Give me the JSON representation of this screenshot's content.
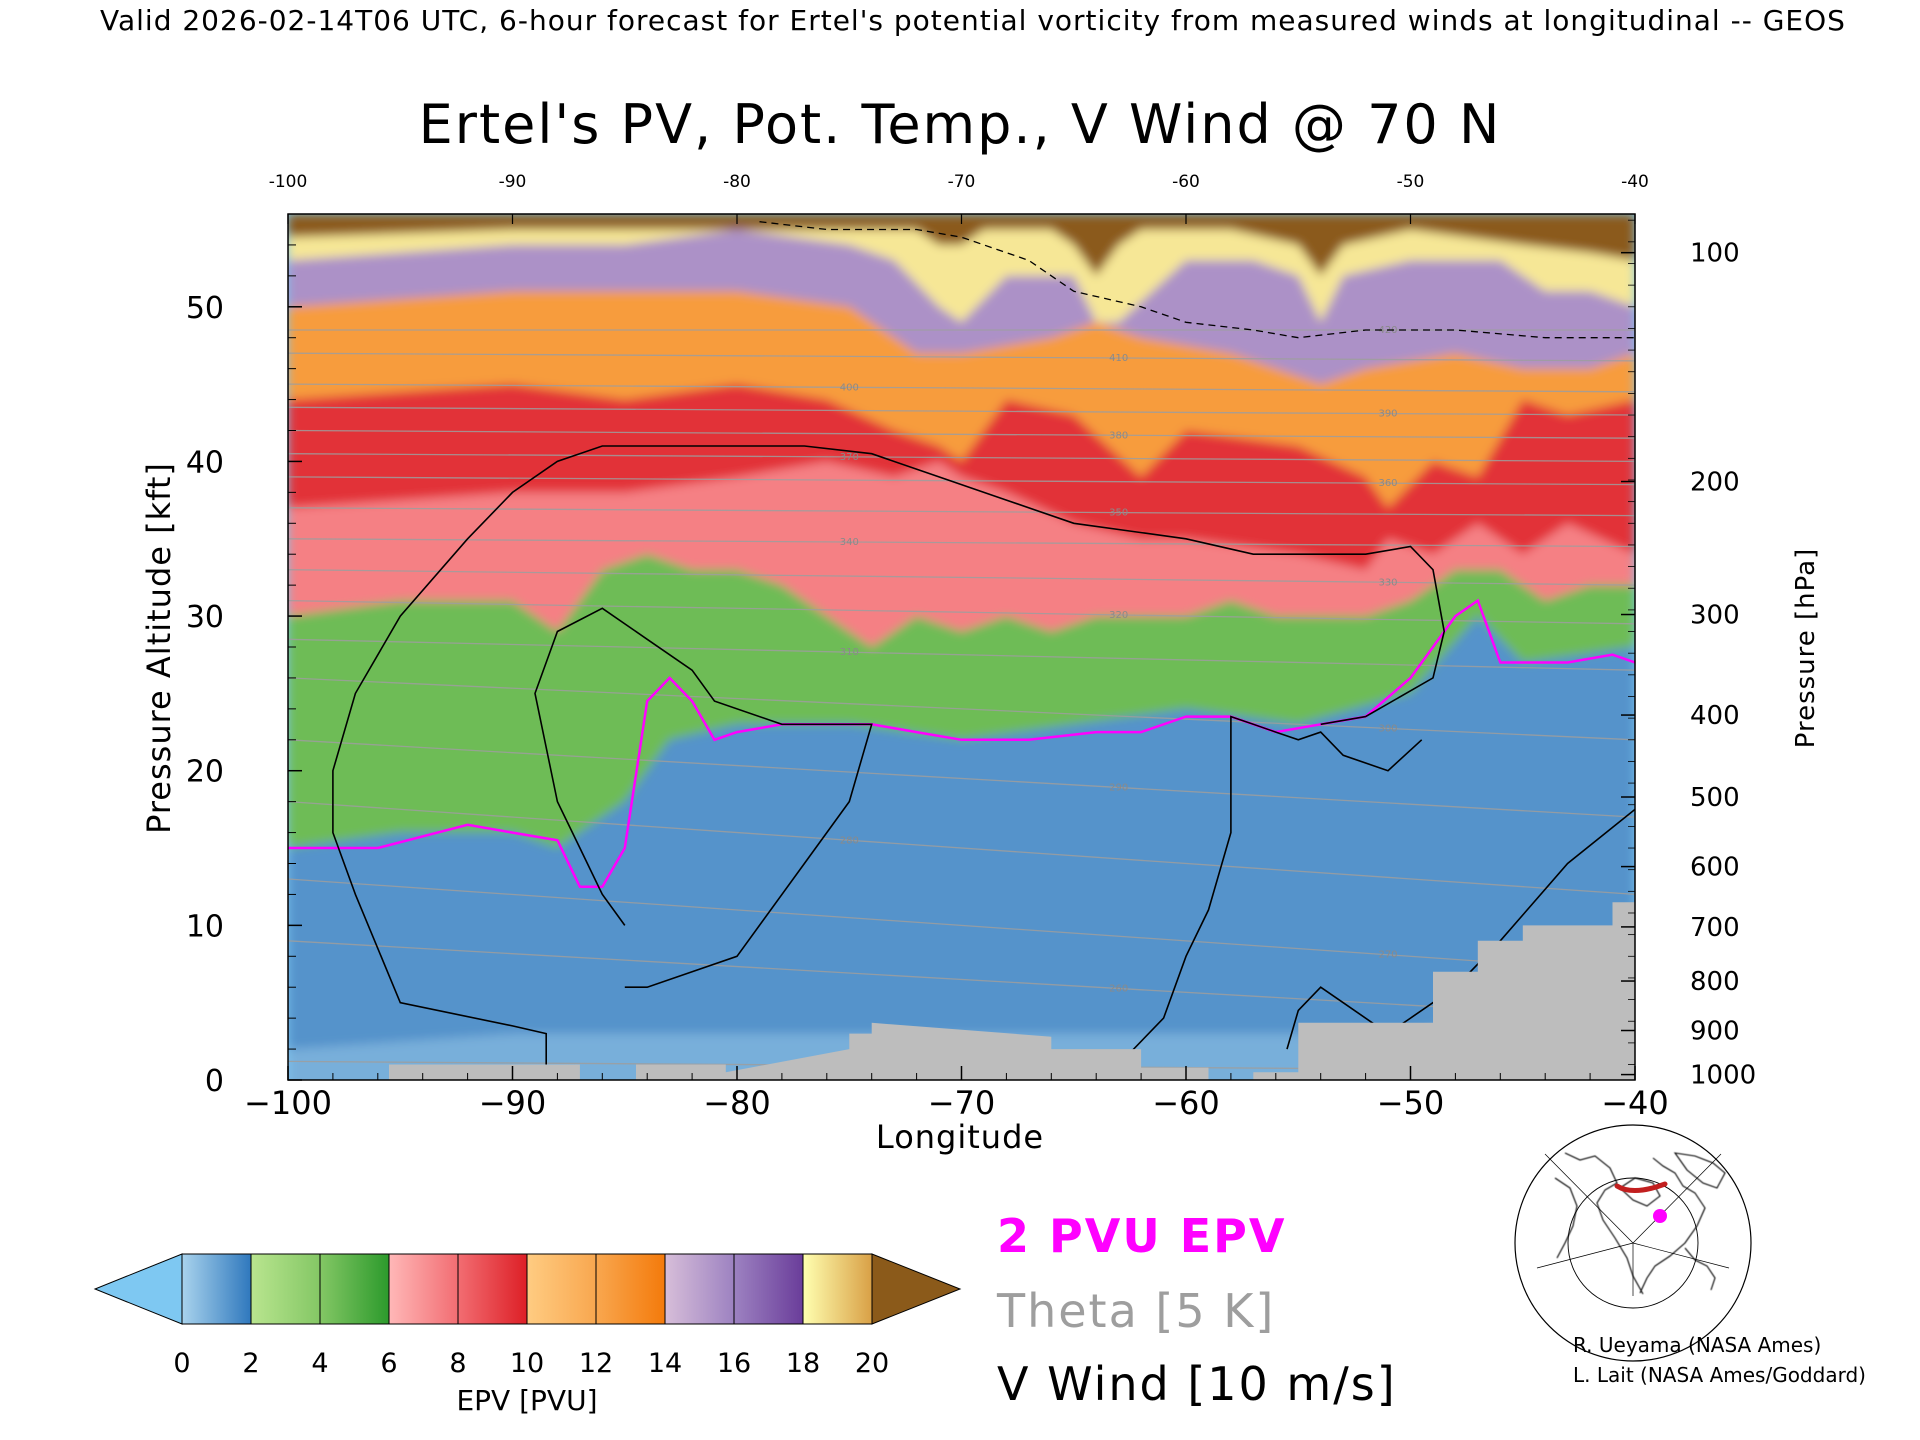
{
  "header_line": "Valid 2026-02-14T06 UTC, 6-hour forecast for Ertel's potential vorticity from measured winds at longitudinal -- GEOS",
  "chart_data": {
    "type": "heatmap",
    "title": "Ertel's PV, Pot. Temp., V Wind @ 70 N",
    "xlabel": "Longitude",
    "ylabel_left": "Pressure Altitude [kft]",
    "ylabel_right": "Pressure [hPa]",
    "xlim": [
      -100,
      -40
    ],
    "ylim_kft": [
      0,
      56
    ],
    "x_ticks": [
      "-100",
      "-90",
      "-80",
      "-70",
      "-60",
      "-50",
      "-40"
    ],
    "top_ticks": [
      "-100",
      "-90",
      "-80",
      "-70",
      "-60",
      "-50",
      "-40"
    ],
    "left_ticks": [
      {
        "label": "0",
        "kft": 0
      },
      {
        "label": "10",
        "kft": 10
      },
      {
        "label": "20",
        "kft": 20
      },
      {
        "label": "30",
        "kft": 30
      },
      {
        "label": "40",
        "kft": 40
      },
      {
        "label": "50",
        "kft": 50
      }
    ],
    "right_ticks": [
      {
        "label": "1000",
        "kft": 0.35
      },
      {
        "label": "900",
        "kft": 3.2
      },
      {
        "label": "800",
        "kft": 6.4
      },
      {
        "label": "700",
        "kft": 9.9
      },
      {
        "label": "600",
        "kft": 13.8
      },
      {
        "label": "500",
        "kft": 18.3
      },
      {
        "label": "400",
        "kft": 23.6
      },
      {
        "label": "300",
        "kft": 30.1
      },
      {
        "label": "200",
        "kft": 38.7
      },
      {
        "label": "100",
        "kft": 53.5
      }
    ],
    "pv_layers": [
      {
        "pv": 0.8,
        "longitude": [
          -100,
          -90,
          -80,
          -70,
          -60,
          -50,
          -45,
          -40
        ],
        "top_kft": [
          2,
          3,
          3,
          3,
          3,
          3,
          5,
          8
        ]
      },
      {
        "pv": 1.4,
        "longitude": [
          -100,
          -95,
          -90,
          -88,
          -85,
          -83,
          -80,
          -75,
          -70,
          -65,
          -60,
          -55,
          -50,
          -47,
          -45,
          -40
        ],
        "top_kft": [
          15,
          16,
          16,
          15,
          18,
          22,
          23,
          23,
          22,
          23,
          24,
          23,
          25,
          30,
          27,
          28
        ]
      },
      {
        "pv": 4.5,
        "longitude": [
          -100,
          -95,
          -90,
          -88,
          -86,
          -84,
          -82,
          -80,
          -78,
          -76,
          -74,
          -72,
          -70,
          -68,
          -66,
          -64,
          -62,
          -60,
          -58,
          -56,
          -54,
          -52,
          -50,
          -48,
          -46,
          -44,
          -42,
          -40
        ],
        "top_kft": [
          30,
          31,
          31,
          29,
          33,
          34,
          33,
          33,
          32,
          30,
          28,
          30,
          29,
          30,
          29,
          30,
          30,
          30,
          31,
          30,
          30,
          30,
          31,
          33,
          33,
          31,
          32,
          32
        ]
      },
      {
        "pv": 7.5,
        "longitude": [
          -100,
          -90,
          -85,
          -80,
          -76,
          -73,
          -71,
          -70,
          -68,
          -65,
          -62,
          -60,
          -55,
          -52,
          -51,
          -49,
          -47,
          -45,
          -43,
          -40
        ],
        "top_kft": [
          37,
          38,
          38,
          39,
          40,
          39,
          40,
          39,
          38,
          36,
          35,
          35,
          34,
          33,
          35,
          34,
          36,
          34,
          36,
          34
        ]
      },
      {
        "pv": 9.5,
        "longitude": [
          -100,
          -90,
          -85,
          -80,
          -76,
          -73,
          -71,
          -70,
          -68,
          -65,
          -62,
          -60,
          -55,
          -52,
          -51,
          -49,
          -47,
          -45,
          -43,
          -40
        ],
        "top_kft": [
          44,
          45,
          44,
          45,
          44,
          42,
          41,
          40,
          44,
          43,
          39,
          42,
          41,
          39,
          37,
          40,
          39,
          44,
          43,
          44
        ]
      },
      {
        "pv": 12.5,
        "longitude": [
          -100,
          -90,
          -80,
          -75,
          -72,
          -70,
          -66,
          -64,
          -62,
          -58,
          -54,
          -52,
          -48,
          -45,
          -42,
          -40
        ],
        "top_kft": [
          50,
          51,
          51,
          50,
          47,
          47,
          48,
          49,
          48,
          47,
          45,
          46,
          47,
          46,
          46,
          47
        ]
      },
      {
        "pv": 15.5,
        "longitude": [
          -100,
          -90,
          -85,
          -80,
          -75,
          -73,
          -71,
          -70,
          -68,
          -65,
          -64,
          -63,
          -60,
          -57,
          -55,
          -54,
          -53,
          -50,
          -46,
          -44,
          -42,
          -40
        ],
        "top_kft": [
          53,
          54,
          54,
          55,
          54,
          53,
          50,
          49,
          52,
          52,
          49,
          49,
          53,
          53,
          52,
          49,
          52,
          53,
          53,
          51,
          51,
          50
        ]
      },
      {
        "pv": 18.5,
        "longitude": [
          -100,
          -90,
          -80,
          -72,
          -71,
          -70,
          -69,
          -66,
          -65,
          -64,
          -63,
          -62,
          -58,
          -55,
          -54,
          -53,
          -50,
          -45,
          -42,
          -40
        ],
        "top_kft": [
          54.5,
          55,
          55,
          55,
          54,
          54,
          55,
          55,
          54,
          52,
          54,
          55,
          55,
          54,
          52,
          54,
          55,
          54,
          53.5,
          53
        ]
      },
      {
        "pv": 21,
        "longitude": [
          -100,
          -40
        ],
        "top_kft": [
          56,
          56
        ]
      }
    ],
    "epv_2pvu_contour": {
      "longitude": [
        -100,
        -96,
        -92,
        -90,
        -88,
        -87,
        -86,
        -85,
        -84,
        -83,
        -82,
        -81,
        -80,
        -78,
        -76,
        -74,
        -72,
        -70,
        -67,
        -64,
        -62,
        -60,
        -58,
        -56,
        -54,
        -52,
        -50,
        -49,
        -48,
        -47,
        -46,
        -45,
        -43,
        -41,
        -40
      ],
      "kft": [
        15,
        15,
        16.5,
        16,
        15.5,
        12.5,
        12.5,
        15,
        24.5,
        26,
        24.5,
        22,
        22.5,
        23,
        23,
        23,
        22.5,
        22,
        22,
        22.5,
        22.5,
        23.5,
        23.5,
        22.5,
        23,
        23.5,
        26,
        28,
        30,
        31,
        27,
        27,
        27,
        27.5,
        27
      ]
    },
    "theta_isentropes": [
      {
        "label": "250",
        "kft": [
          1.2,
          0.6
        ]
      },
      {
        "label": "260",
        "kft": [
          9,
          4
        ]
      },
      {
        "label": "270",
        "kft": [
          13,
          7
        ]
      },
      {
        "label": "280",
        "kft": [
          18,
          12
        ]
      },
      {
        "label": "290",
        "kft": [
          22,
          17
        ]
      },
      {
        "label": "300",
        "kft": [
          26,
          22
        ]
      },
      {
        "label": "310",
        "kft": [
          28.5,
          26.5
        ]
      },
      {
        "label": "320",
        "kft": [
          31,
          29.5
        ]
      },
      {
        "label": "330",
        "kft": [
          33,
          32
        ]
      },
      {
        "label": "340",
        "kft": [
          35,
          34.5
        ]
      },
      {
        "label": "350",
        "kft": [
          37,
          36.5
        ]
      },
      {
        "label": "360",
        "kft": [
          39,
          38.5
        ]
      },
      {
        "label": "370",
        "kft": [
          40.5,
          40
        ]
      },
      {
        "label": "380",
        "kft": [
          42,
          41.5
        ]
      },
      {
        "label": "390",
        "kft": [
          43.5,
          43
        ]
      },
      {
        "label": "400",
        "kft": [
          45,
          44.5
        ]
      },
      {
        "label": "410",
        "kft": [
          47,
          46.5
        ]
      },
      {
        "label": "420",
        "kft": [
          48.5,
          48.5
        ]
      }
    ],
    "vwind_zero_contours": [
      {
        "longitude": [
          -88.5,
          -88.5,
          -90,
          -95,
          -97,
          -98,
          -98,
          -97,
          -95,
          -92,
          -90,
          -88,
          -86,
          -84,
          -82,
          -80,
          -77,
          -74,
          -71,
          -68,
          -65,
          -60,
          -57,
          -55,
          -52,
          -50,
          -49,
          -48.5,
          -49,
          -52,
          -54
        ],
        "kft": [
          0,
          3,
          3.5,
          5,
          12,
          16,
          20,
          25,
          30,
          35,
          38,
          40,
          41,
          41,
          41,
          41,
          41,
          40.5,
          39,
          37.5,
          36,
          35,
          34,
          34,
          34,
          34.5,
          33,
          29,
          26,
          23.5,
          23
        ]
      },
      {
        "longitude": [
          -85,
          -84,
          -82,
          -80,
          -77,
          -75,
          -74,
          -75,
          -78,
          -81,
          -82,
          -84,
          -86,
          -88,
          -89,
          -88,
          -87,
          -86,
          -85
        ],
        "kft": [
          6,
          6,
          7,
          8,
          14,
          18,
          23,
          23,
          23,
          24.5,
          26.5,
          28.5,
          30.5,
          29,
          25,
          18,
          15,
          12,
          10
        ]
      },
      {
        "longitude": [
          -65,
          -63,
          -61,
          -60,
          -59,
          -58,
          -58,
          -58,
          -57,
          -56,
          -55,
          -54,
          -53,
          -51,
          -49.5
        ],
        "kft": [
          0,
          1,
          4,
          8,
          11,
          16,
          23.5,
          23.5,
          23,
          22.5,
          22,
          22.5,
          21,
          20,
          22
        ]
      },
      {
        "longitude": [
          -55.5,
          -55,
          -54,
          -53,
          -51,
          -50,
          -48,
          -46,
          -43,
          -40
        ],
        "kft": [
          2,
          4.5,
          6,
          5,
          3,
          4,
          6,
          9,
          14,
          17.5
        ]
      }
    ],
    "tropopause_dashed": {
      "longitude": [
        -79,
        -76,
        -72,
        -70,
        -67,
        -65,
        -62,
        -60,
        -57,
        -55,
        -52,
        -48,
        -44,
        -40
      ],
      "kft": [
        55.5,
        55,
        55,
        54.5,
        53,
        51,
        50,
        49,
        48.5,
        48,
        48.5,
        48.5,
        48,
        48
      ]
    },
    "terrain": {
      "longitude": [
        -100,
        -95.5,
        -95.5,
        -87,
        -87,
        -84.5,
        -84.5,
        -80.5,
        -80.5,
        -75,
        -75,
        -74,
        -74,
        -66,
        -66,
        -62,
        -62,
        -59,
        -59,
        -57,
        -57,
        -55,
        -55,
        -49,
        -49,
        -47,
        -47,
        -45,
        -45,
        -41,
        -41,
        -40
      ],
      "kft": [
        0,
        0,
        1,
        1,
        0,
        0,
        1,
        1,
        0.5,
        2,
        3,
        3,
        3.7,
        2.8,
        2,
        2,
        0.8,
        0.8,
        0,
        0,
        0.5,
        0.5,
        3.7,
        3.7,
        7,
        7,
        9,
        9,
        10,
        10,
        11.5,
        11.5
      ]
    },
    "colorbar": {
      "label": "EPV [PVU]",
      "ticks": [
        "0",
        "2",
        "4",
        "6",
        "8",
        "10",
        "12",
        "14",
        "16",
        "18",
        "20"
      ],
      "segments": [
        {
          "from": "#a9d3ed",
          "to": "#2f78bd"
        },
        {
          "from": "#b9e58f",
          "to": "#84c765"
        },
        {
          "from": "#84c765",
          "to": "#2c9a2c"
        },
        {
          "from": "#ffb8b8",
          "to": "#f26d72"
        },
        {
          "from": "#f26d72",
          "to": "#dd1f26"
        },
        {
          "from": "#ffcc82",
          "to": "#f8a74f"
        },
        {
          "from": "#f8a74f",
          "to": "#f47a0b"
        },
        {
          "from": "#d7bed9",
          "to": "#9d82c1"
        },
        {
          "from": "#9d82c1",
          "to": "#6a3d9a"
        },
        {
          "from": "#ffffb0",
          "to": "#d9a046"
        }
      ],
      "under_color": "#7ec8f2",
      "over_color": "#8b5a1a"
    },
    "legend": {
      "epv": "2 PVU EPV",
      "theta": "Theta [5 K]",
      "vwind": "V Wind [10 m/s]"
    }
  },
  "colors": {
    "pv_contour": "#ff00ff",
    "theta": "#9e9e9e",
    "terrain": "#bdbdbd",
    "wind": "#000000"
  },
  "credits": [
    "R. Ueyama (NASA Ames)",
    "L. Lait (NASA Ames/Goddard)"
  ]
}
